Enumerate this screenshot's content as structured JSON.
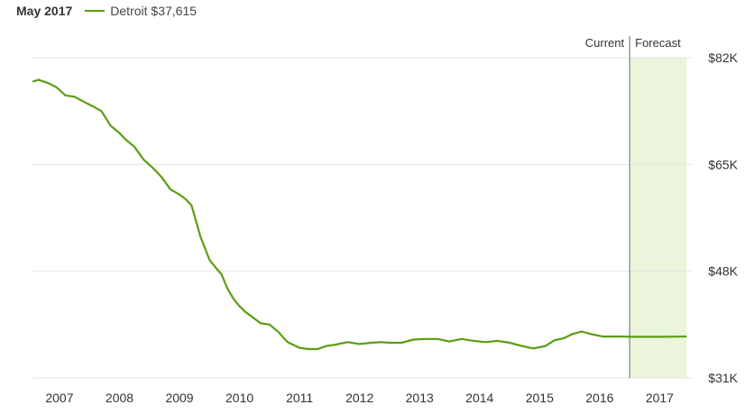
{
  "legend": {
    "date": "May 2017",
    "series_label": "Detroit $37,615"
  },
  "markers": {
    "current": "Current",
    "forecast": "Forecast"
  },
  "colors": {
    "line": "#5a9e12",
    "forecast_band": "#eaf5dc",
    "divider": "#666666",
    "grid": "#e6e6e6"
  },
  "chart_data": {
    "type": "line",
    "title": "",
    "xlabel": "",
    "ylabel": "",
    "xlim": [
      2006.55,
      2017.55
    ],
    "ylim": [
      31000,
      82000
    ],
    "y_ticks": [
      {
        "value": 82000,
        "label": "$82K"
      },
      {
        "value": 65000,
        "label": "$65K"
      },
      {
        "value": 48000,
        "label": "$48K"
      },
      {
        "value": 31000,
        "label": "$31K"
      }
    ],
    "x_ticks": [
      {
        "value": 2007,
        "label": "2007"
      },
      {
        "value": 2008,
        "label": "2008"
      },
      {
        "value": 2009,
        "label": "2009"
      },
      {
        "value": 2010,
        "label": "2010"
      },
      {
        "value": 2011,
        "label": "2011"
      },
      {
        "value": 2012,
        "label": "2012"
      },
      {
        "value": 2013,
        "label": "2013"
      },
      {
        "value": 2014,
        "label": "2014"
      },
      {
        "value": 2015,
        "label": "2015"
      },
      {
        "value": 2016,
        "label": "2016"
      },
      {
        "value": 2017,
        "label": "2017"
      }
    ],
    "forecast_start": 2016.5,
    "forecast_end": 2017.45,
    "series": [
      {
        "name": "Detroit",
        "x": [
          2006.55,
          2006.65,
          2006.8,
          2006.95,
          2007.1,
          2007.25,
          2007.4,
          2007.55,
          2007.7,
          2007.85,
          2008.0,
          2008.1,
          2008.25,
          2008.4,
          2008.55,
          2008.7,
          2008.85,
          2009.0,
          2009.1,
          2009.2,
          2009.35,
          2009.5,
          2009.6,
          2009.7,
          2009.8,
          2009.9,
          2010.0,
          2010.1,
          2010.2,
          2010.35,
          2010.5,
          2010.65,
          2010.8,
          2011.0,
          2011.15,
          2011.3,
          2011.45,
          2011.6,
          2011.8,
          2012.0,
          2012.2,
          2012.35,
          2012.5,
          2012.7,
          2012.9,
          2013.1,
          2013.3,
          2013.5,
          2013.7,
          2013.9,
          2014.1,
          2014.3,
          2014.5,
          2014.7,
          2014.9,
          2015.1,
          2015.25,
          2015.4,
          2015.55,
          2015.7,
          2015.85,
          2015.95,
          2016.05,
          2016.15,
          2016.25,
          2016.4,
          2016.5,
          2016.7,
          2016.9,
          2017.1,
          2017.3,
          2017.45
        ],
        "values": [
          78200,
          78500,
          78000,
          77300,
          76000,
          75800,
          75000,
          74300,
          73500,
          71200,
          70000,
          69000,
          67800,
          65800,
          64500,
          63000,
          61000,
          60200,
          59500,
          58500,
          53500,
          49800,
          48600,
          47500,
          45200,
          43600,
          42400,
          41500,
          40800,
          39700,
          39500,
          38300,
          36700,
          35800,
          35600,
          35600,
          36100,
          36300,
          36700,
          36400,
          36600,
          36700,
          36600,
          36600,
          37100,
          37200,
          37200,
          36800,
          37200,
          36900,
          36700,
          36900,
          36600,
          36100,
          35700,
          36100,
          37000,
          37300,
          38000,
          38400,
          38000,
          37800,
          37600,
          37600,
          37600,
          37600,
          37550,
          37550,
          37550,
          37550,
          37580,
          37615
        ]
      }
    ]
  }
}
